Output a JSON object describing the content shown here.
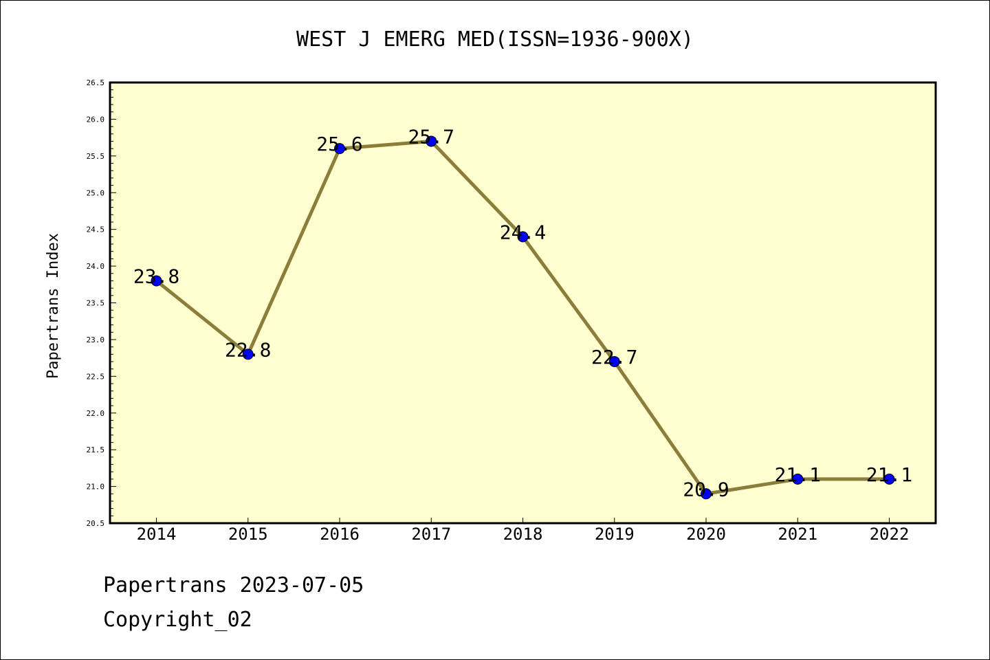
{
  "chart_data": {
    "type": "line",
    "title": "WEST J EMERG MED(ISSN=1936-900X)",
    "xlabel": "",
    "ylabel": "Papertrans Index",
    "categories": [
      "2014",
      "2015",
      "2016",
      "2017",
      "2018",
      "2019",
      "2020",
      "2021",
      "2022"
    ],
    "series": [
      {
        "values": [
          23.8,
          22.8,
          25.6,
          25.7,
          24.4,
          22.7,
          20.9,
          21.1,
          21.1
        ],
        "data_labels": [
          "23.8",
          "22.8",
          "25.6",
          "25.7",
          "24.4",
          "22.7",
          "20.9",
          "21.1",
          "21.1"
        ]
      }
    ],
    "ylim": [
      20.5,
      26.5
    ],
    "yticks": [
      "20.5",
      "21.0",
      "21.5",
      "22.0",
      "22.5",
      "23.0",
      "23.5",
      "24.0",
      "24.5",
      "25.0",
      "25.5",
      "26.0",
      "26.5"
    ],
    "grid": false,
    "colors": {
      "plot_background": "#ffffd0",
      "line": "#8b7d3a",
      "marker": "#0000ff",
      "axis": "#000000"
    }
  },
  "footer": {
    "line1": "Papertrans 2023-07-05",
    "line2": "Copyright_02"
  }
}
